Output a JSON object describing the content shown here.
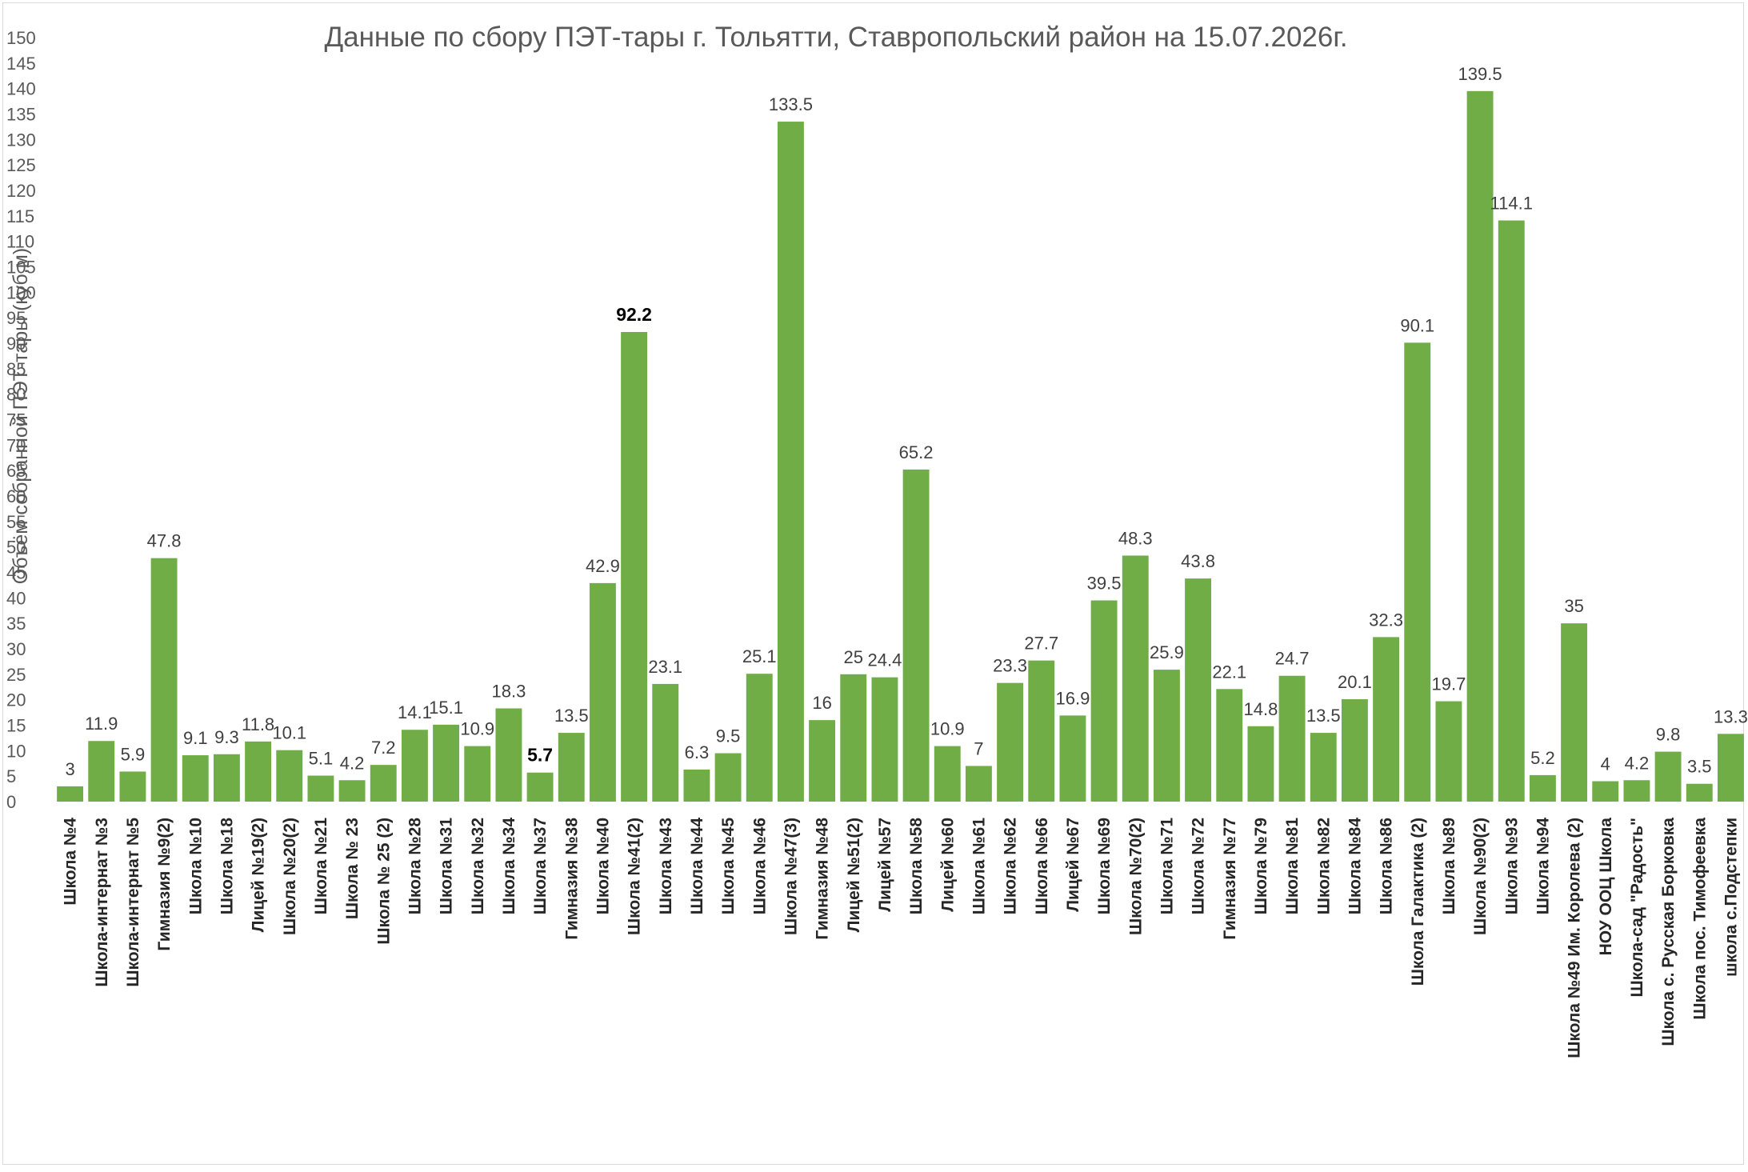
{
  "chart_data": {
    "type": "bar",
    "title": "Данные по сбору ПЭТ-тары г. Тольятти, Ставропольский район на 15.07.2026г.",
    "ylabel": "Объём собранной ПЭТ-тары (куб.м)",
    "xlabel": "",
    "ylim": [
      0,
      150
    ],
    "ytick_step": 5,
    "grid": false,
    "legend": "none",
    "bar_color": "#70ad47",
    "categories": [
      "Школа №4",
      "Школа-интернат №3",
      "Школа-интернат №5",
      "Гимназия №9(2)",
      "Школа №10",
      "Школа №18",
      "Лицей №19(2)",
      "Школа №20(2)",
      "Школа №21",
      "Школа № 23",
      "Школа № 25 (2)",
      "Школа №28",
      "Школа №31",
      "Школа №32",
      "Школа №34",
      "Школа №37",
      "Гимназия №38",
      "Школа №40",
      "Школа №41(2)",
      "Школа №43",
      "Школа №44",
      "Школа №45",
      "Школа №46",
      "Школа №47(3)",
      "Гимназия №48",
      "Лицей №51(2)",
      "Лицей №57",
      "Школа №58",
      "Лицей №60",
      "Школа №61",
      "Школа №62",
      "Школа №66",
      "Лицей №67",
      "Школа №69",
      "Школа №70(2)",
      "Школа №71",
      "Школа №72",
      "Гимназия №77",
      "Школа №79",
      "Школа №81",
      "Школа №82",
      "Школа №84",
      "Школа №86",
      "Школа Галактика (2)",
      "Школа №89",
      "Школа №90(2)",
      "Школа №93",
      "Школа №94",
      "Школа №49 Им. Королева (2)",
      "НОУ ООЦ Школа",
      "Школа-сад \"Радость\"",
      "Школа с. Русская Борковка",
      "Школа пос. Тимофеевка",
      "школа с.Подстепки"
    ],
    "values": [
      3,
      11.9,
      5.9,
      47.8,
      9.1,
      9.3,
      11.8,
      10.1,
      5.1,
      4.2,
      7.2,
      14.1,
      15.1,
      10.9,
      18.3,
      5.7,
      13.5,
      42.9,
      92.2,
      23.1,
      6.3,
      9.5,
      25.1,
      133.5,
      16,
      25,
      24.4,
      65.2,
      10.9,
      7,
      23.3,
      27.7,
      16.9,
      39.5,
      48.3,
      25.9,
      43.8,
      22.1,
      14.8,
      24.7,
      13.5,
      20.1,
      32.3,
      90.1,
      19.7,
      139.5,
      114.1,
      5.2,
      35,
      4,
      4.2,
      9.8,
      3.5,
      13.3
    ],
    "data_labels": [
      "3",
      "11.9",
      "5.9",
      "47.8",
      "9.1",
      "9.3",
      "11.8",
      "10.1",
      "5.1",
      "4.2",
      "7.2",
      "14.1",
      "15.1",
      "10.9",
      "18.3",
      "5.7",
      "13.5",
      "42.9",
      "92.2",
      "23.1",
      "6.3",
      "9.5",
      "25.1",
      "133.5",
      "16",
      "25",
      "24.4",
      "65.2",
      "10.9",
      "7",
      "23.3",
      "27.7",
      "16.9",
      "39.5",
      "48.3",
      "25.9",
      "43.8",
      "22.1",
      "14.8",
      "24.7",
      "13.5",
      "20.1",
      "32.3",
      "90.1",
      "19.7",
      "139.5",
      "114.1",
      "5.2",
      "35",
      "4",
      "4.2",
      "9.8",
      "3.5",
      "13.3"
    ]
  }
}
